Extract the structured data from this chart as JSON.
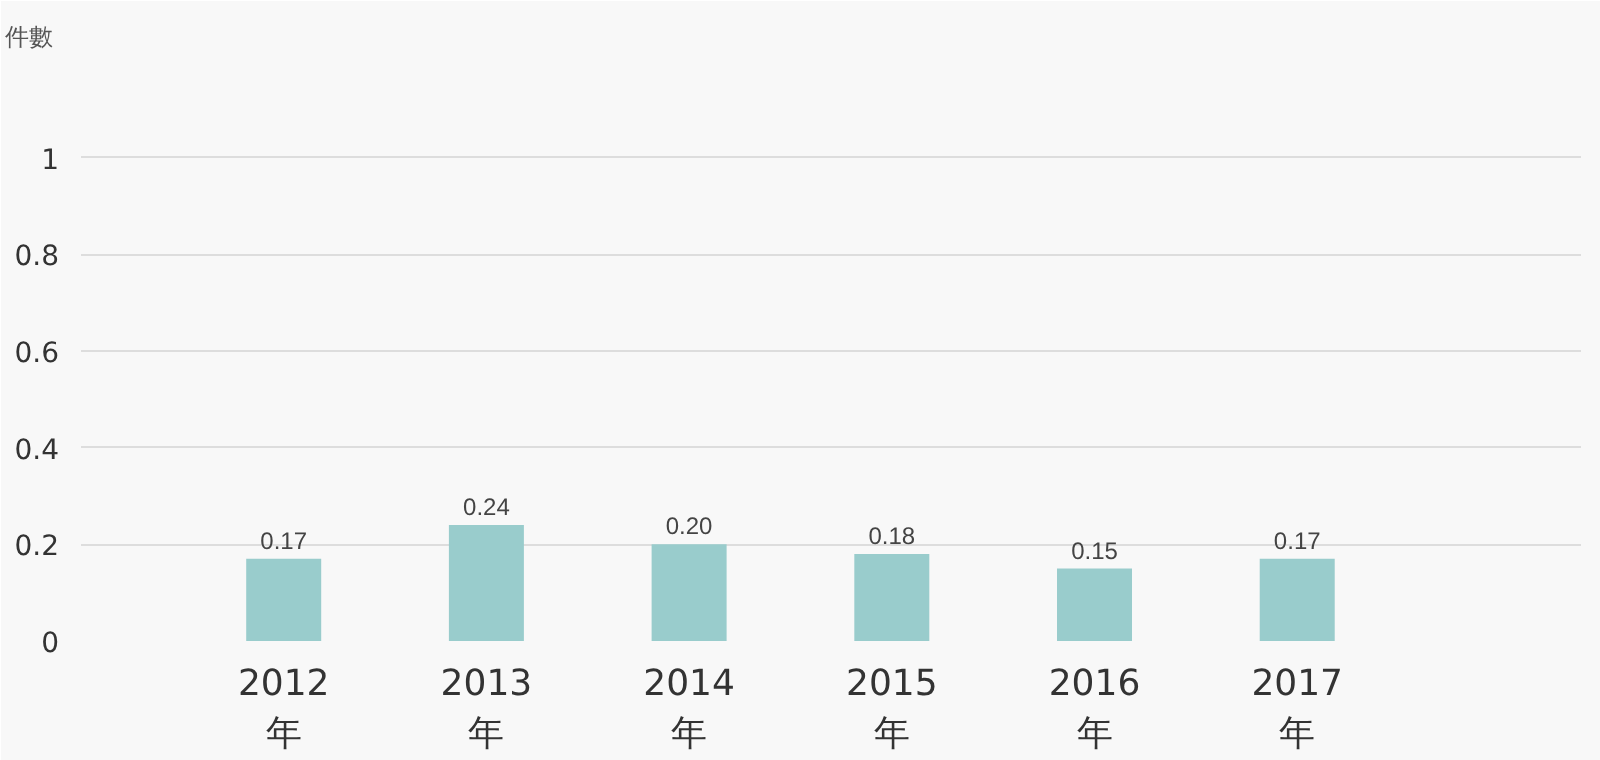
{
  "chart_data": {
    "type": "bar",
    "ylabel": "件數",
    "categories": [
      "2012\n年",
      "2013\n年",
      "2014\n年",
      "2015\n年",
      "2016\n年",
      "2017\n年"
    ],
    "values": [
      0.17,
      0.24,
      0.2,
      0.18,
      0.15,
      0.17
    ],
    "value_labels": [
      "0.17",
      "0.24",
      "0.20",
      "0.18",
      "0.15",
      "0.17"
    ],
    "color": "#99cccc",
    "ylim": [
      0,
      1.2
    ],
    "yticks": [
      0,
      0.2,
      0.4,
      0.6,
      0.8,
      1
    ],
    "grid": "y"
  }
}
